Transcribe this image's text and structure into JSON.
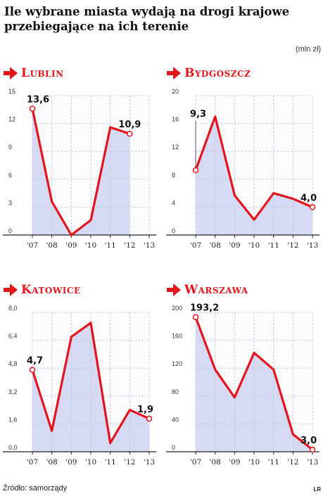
{
  "title": "Ile wybrane miasta wydają na drogi krajowe przebiegające na ich terenie",
  "unit": "(mln zł)",
  "source": "Źródło: samorządy",
  "credit": "LR",
  "colors": {
    "line": "#e3141b",
    "fill": "#c8cdf0",
    "grid": "#c9ccde",
    "axis": "#222222"
  },
  "icons": {
    "city_marker": "right-arrow-icon"
  },
  "chart_data": [
    {
      "type": "area",
      "city": "Lublin",
      "categories": [
        "'07",
        "'08",
        "'09",
        "'10",
        "'11",
        "'12",
        "'13"
      ],
      "values": [
        13.6,
        3.6,
        0.0,
        1.6,
        11.6,
        10.9,
        null
      ],
      "ylim": [
        0,
        15
      ],
      "yticks": [
        "0",
        "3",
        "6",
        "9",
        "12",
        "15"
      ],
      "labels": [
        {
          "index": 0,
          "text": "13,6"
        },
        {
          "index": 5,
          "text": "10,9"
        }
      ],
      "grid": true
    },
    {
      "type": "area",
      "city": "Bydgoszcz",
      "categories": [
        "'07",
        "'08",
        "'09",
        "'10",
        "'11",
        "'12",
        "'13"
      ],
      "values": [
        9.3,
        17.0,
        5.7,
        2.2,
        6.0,
        5.2,
        4.0
      ],
      "ylim": [
        0,
        20
      ],
      "yticks": [
        "0",
        "4",
        "8",
        "12",
        "16",
        "20"
      ],
      "labels": [
        {
          "index": 0,
          "text": "9,3"
        },
        {
          "index": 6,
          "text": "4,0"
        }
      ],
      "grid": true
    },
    {
      "type": "area",
      "city": "Katowice",
      "categories": [
        "'07",
        "'08",
        "'09",
        "'10",
        "'11",
        "'12",
        "'13"
      ],
      "values": [
        4.7,
        1.2,
        6.6,
        7.4,
        0.5,
        2.4,
        1.9
      ],
      "ylim": [
        0,
        8
      ],
      "yticks": [
        "0,0",
        "1,6",
        "3,2",
        "4,8",
        "6,4",
        "8,0"
      ],
      "labels": [
        {
          "index": 0,
          "text": "4,7"
        },
        {
          "index": 6,
          "text": "1,9"
        }
      ],
      "grid": true
    },
    {
      "type": "area",
      "city": "Warszawa",
      "categories": [
        "'07",
        "'08",
        "'09",
        "'10",
        "'11",
        "'12",
        "'13"
      ],
      "values": [
        193.2,
        118.0,
        78.0,
        142.0,
        118.0,
        25.0,
        3.0
      ],
      "ylim": [
        0,
        200
      ],
      "yticks": [
        "0",
        "40",
        "80",
        "120",
        "160",
        "200"
      ],
      "labels": [
        {
          "index": 0,
          "text": "193,2"
        },
        {
          "index": 6,
          "text": "3,0"
        }
      ],
      "grid": true
    }
  ]
}
